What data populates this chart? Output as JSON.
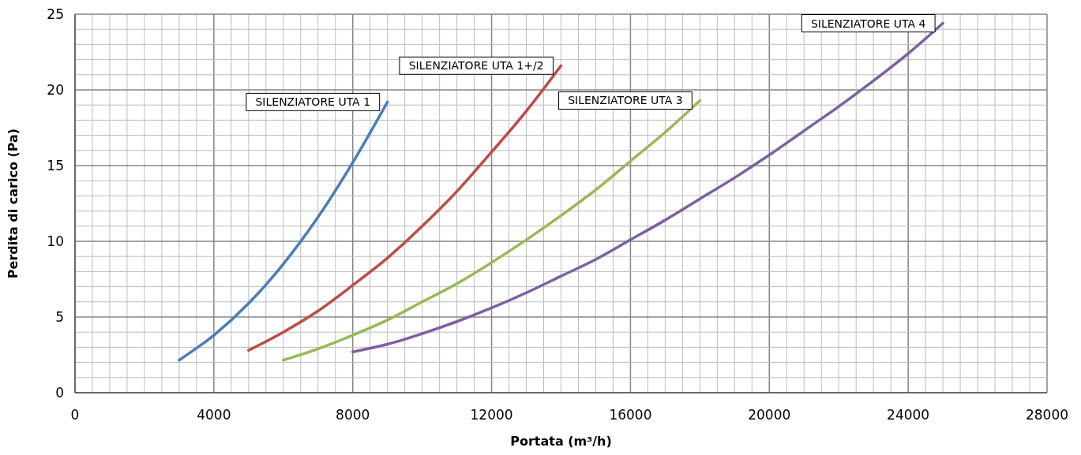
{
  "chart_data": {
    "type": "line",
    "xlabel": "Portata (m³/h)",
    "ylabel": "Perdita di carico (Pa)",
    "xlim": [
      0,
      28000
    ],
    "ylim": [
      0,
      25
    ],
    "xticks": [
      0,
      {
        "value": 500,
        "label": null
      },
      {
        "value": 1000,
        "label": null
      },
      {
        "value": 1500,
        "label": null
      },
      {
        "value": 2000,
        "label": null
      },
      {
        "value": 2500,
        "label": null
      },
      {
        "value": 3000,
        "label": null
      },
      {
        "value": 3500,
        "label": null
      },
      4000,
      {
        "value": 4500,
        "label": null
      },
      {
        "value": 5000,
        "label": null
      },
      {
        "value": 5500,
        "label": null
      },
      {
        "value": 6000,
        "label": null
      },
      {
        "value": 6500,
        "label": null
      },
      {
        "value": 7000,
        "label": null
      },
      {
        "value": 7500,
        "label": null
      },
      8000,
      {
        "value": 8500,
        "label": null
      },
      {
        "value": 9000,
        "label": null
      },
      {
        "value": 9500,
        "label": null
      },
      {
        "value": 10000,
        "label": null
      },
      {
        "value": 10500,
        "label": null
      },
      {
        "value": 11000,
        "label": null
      },
      {
        "value": 11500,
        "label": null
      },
      12000,
      {
        "value": 12500,
        "label": null
      },
      {
        "value": 13000,
        "label": null
      },
      {
        "value": 13500,
        "label": null
      },
      {
        "value": 14000,
        "label": null
      },
      {
        "value": 14500,
        "label": null
      },
      {
        "value": 15000,
        "label": null
      },
      {
        "value": 15500,
        "label": null
      },
      16000,
      {
        "value": 16500,
        "label": null
      },
      {
        "value": 17000,
        "label": null
      },
      {
        "value": 17500,
        "label": null
      },
      {
        "value": 18000,
        "label": null
      },
      {
        "value": 18500,
        "label": null
      },
      {
        "value": 19000,
        "label": null
      },
      {
        "value": 19500,
        "label": null
      },
      20000,
      {
        "value": 20500,
        "label": null
      },
      {
        "value": 21000,
        "label": null
      },
      {
        "value": 21500,
        "label": null
      },
      {
        "value": 22000,
        "label": null
      },
      {
        "value": 22500,
        "label": null
      },
      {
        "value": 23000,
        "label": null
      },
      {
        "value": 23500,
        "label": null
      },
      24000,
      {
        "value": 24500,
        "label": null
      },
      {
        "value": 25000,
        "label": null
      },
      {
        "value": 25500,
        "label": null
      },
      {
        "value": 26000,
        "label": null
      },
      {
        "value": 26500,
        "label": null
      },
      {
        "value": 27000,
        "label": null
      },
      {
        "value": 27500,
        "label": null
      },
      28000
    ],
    "yticks": [
      0,
      {
        "value": 1,
        "label": null
      },
      {
        "value": 2,
        "label": null
      },
      {
        "value": 3,
        "label": null
      },
      {
        "value": 4,
        "label": null
      },
      5,
      {
        "value": 6,
        "label": null
      },
      {
        "value": 7,
        "label": null
      },
      {
        "value": 8,
        "label": null
      },
      {
        "value": 9,
        "label": null
      },
      10,
      {
        "value": 11,
        "label": null
      },
      {
        "value": 12,
        "label": null
      },
      {
        "value": 13,
        "label": null
      },
      {
        "value": 14,
        "label": null
      },
      15,
      {
        "value": 16,
        "label": null
      },
      {
        "value": 17,
        "label": null
      },
      {
        "value": 18,
        "label": null
      },
      {
        "value": 19,
        "label": null
      },
      20,
      {
        "value": 21,
        "label": null
      },
      {
        "value": 22,
        "label": null
      },
      {
        "value": 23,
        "label": null
      },
      {
        "value": 24,
        "label": null
      },
      25
    ],
    "grid": true,
    "marker": "none",
    "line_style": "solid",
    "series": [
      {
        "name": "SILENZIATORE UTA 1",
        "color": "#4a7ebb",
        "x": [
          3000,
          4000,
          5000,
          6000,
          7000,
          8000,
          9000
        ],
        "values": [
          2.15,
          3.8,
          5.9,
          8.5,
          11.6,
          15.2,
          19.2
        ]
      },
      {
        "name": "SILENZIATORE UTA 1+/2",
        "color": "#be4b48",
        "x": [
          5000,
          6000,
          7000,
          8000,
          9000,
          10000,
          11000,
          12000,
          13000,
          14000
        ],
        "values": [
          2.8,
          4.0,
          5.4,
          7.1,
          8.9,
          11.0,
          13.3,
          15.9,
          18.6,
          21.6
        ]
      },
      {
        "name": "SILENZIATORE UTA 3",
        "color": "#98b954",
        "x": [
          6000,
          7000,
          8000,
          9000,
          10000,
          11000,
          12000,
          13000,
          14000,
          15000,
          16000,
          17000,
          18000
        ],
        "values": [
          2.15,
          2.9,
          3.8,
          4.8,
          6.0,
          7.2,
          8.6,
          10.1,
          11.7,
          13.4,
          15.3,
          17.2,
          19.3
        ]
      },
      {
        "name": "SILENZIATORE UTA 4",
        "color": "#7d60a0",
        "x": [
          8000,
          9000,
          10000,
          11000,
          12000,
          13000,
          14000,
          15000,
          16000,
          17000,
          18000,
          19000,
          20000,
          21000,
          22000,
          23000,
          24000,
          25000
        ],
        "values": [
          2.7,
          3.2,
          3.9,
          4.7,
          5.6,
          6.6,
          7.7,
          8.8,
          10.1,
          11.4,
          12.8,
          14.2,
          15.7,
          17.3,
          18.9,
          20.6,
          22.4,
          24.4
        ]
      }
    ]
  }
}
